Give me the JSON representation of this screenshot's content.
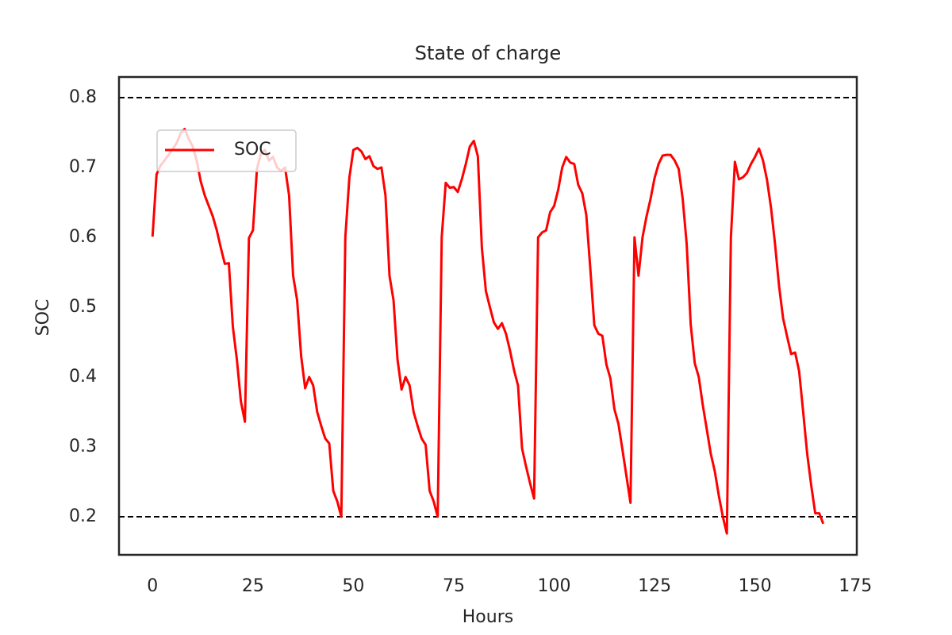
{
  "chart_data": {
    "type": "line",
    "title": "State of charge",
    "x_label": "Hours",
    "y_label": "SOC",
    "x": [
      0,
      1,
      2,
      3,
      4,
      5,
      6,
      7,
      8,
      9,
      10,
      11,
      12,
      13,
      14,
      15,
      16,
      17,
      18,
      19,
      20,
      21,
      22,
      23,
      24,
      25,
      26,
      27,
      28,
      29,
      30,
      31,
      32,
      33,
      34,
      35,
      36,
      37,
      38,
      39,
      40,
      41,
      42,
      43,
      44,
      45,
      46,
      47,
      48,
      49,
      50,
      51,
      52,
      53,
      54,
      55,
      56,
      57,
      58,
      59,
      60,
      61,
      62,
      63,
      64,
      65,
      66,
      67,
      68,
      69,
      70,
      71,
      72,
      73,
      74,
      75,
      76,
      77,
      78,
      79,
      80,
      81,
      82,
      83,
      84,
      85,
      86,
      87,
      88,
      89,
      90,
      91,
      92,
      93,
      94,
      95,
      96,
      97,
      98,
      99,
      100,
      101,
      102,
      103,
      104,
      105,
      106,
      107,
      108,
      109,
      110,
      111,
      112,
      113,
      114,
      115,
      116,
      117,
      118,
      119,
      120,
      121,
      122,
      123,
      124,
      125,
      126,
      127,
      128,
      129,
      130,
      131,
      132,
      133,
      134,
      135,
      136,
      137,
      138,
      139,
      140,
      141,
      142,
      143,
      144,
      145,
      146,
      147,
      148,
      149,
      150,
      151,
      152,
      153,
      154,
      155,
      156,
      157,
      158,
      159,
      160,
      161,
      162,
      163,
      164,
      165,
      166,
      167
    ],
    "series": [
      {
        "name": "SOC",
        "color": "#ff0000",
        "values": [
          0.601,
          0.69,
          0.703,
          0.71,
          0.718,
          0.726,
          0.735,
          0.749,
          0.755,
          0.741,
          0.73,
          0.71,
          0.68,
          0.66,
          0.645,
          0.63,
          0.61,
          0.585,
          0.562,
          0.563,
          0.472,
          0.425,
          0.365,
          0.336,
          0.599,
          0.61,
          0.698,
          0.72,
          0.725,
          0.71,
          0.715,
          0.7,
          0.695,
          0.7,
          0.66,
          0.545,
          0.51,
          0.43,
          0.384,
          0.4,
          0.388,
          0.35,
          0.33,
          0.312,
          0.305,
          0.237,
          0.222,
          0.2,
          0.6,
          0.685,
          0.725,
          0.728,
          0.723,
          0.712,
          0.716,
          0.702,
          0.698,
          0.7,
          0.66,
          0.545,
          0.51,
          0.425,
          0.382,
          0.4,
          0.388,
          0.35,
          0.33,
          0.312,
          0.303,
          0.237,
          0.222,
          0.2,
          0.6,
          0.678,
          0.671,
          0.672,
          0.665,
          0.683,
          0.705,
          0.73,
          0.738,
          0.716,
          0.585,
          0.523,
          0.5,
          0.478,
          0.469,
          0.477,
          0.462,
          0.438,
          0.41,
          0.388,
          0.298,
          0.272,
          0.248,
          0.226,
          0.6,
          0.607,
          0.61,
          0.636,
          0.645,
          0.668,
          0.7,
          0.715,
          0.707,
          0.705,
          0.675,
          0.663,
          0.632,
          0.555,
          0.474,
          0.462,
          0.459,
          0.418,
          0.398,
          0.354,
          0.333,
          0.296,
          0.258,
          0.22,
          0.6,
          0.545,
          0.6,
          0.63,
          0.655,
          0.685,
          0.705,
          0.717,
          0.718,
          0.718,
          0.71,
          0.698,
          0.655,
          0.59,
          0.475,
          0.42,
          0.4,
          0.36,
          0.325,
          0.29,
          0.265,
          0.23,
          0.2,
          0.176,
          0.6,
          0.708,
          0.683,
          0.686,
          0.692,
          0.705,
          0.715,
          0.727,
          0.71,
          0.682,
          0.642,
          0.59,
          0.53,
          0.484,
          0.458,
          0.433,
          0.435,
          0.408,
          0.35,
          0.29,
          0.245,
          0.205,
          0.205,
          0.19
        ]
      }
    ],
    "xlim": [
      -8.35,
      175.35
    ],
    "ylim": [
      0.1455,
      0.8295
    ],
    "xticks": [
      0,
      25,
      50,
      75,
      100,
      125,
      150,
      175
    ],
    "yticks": [
      0.2,
      0.3,
      0.4,
      0.5,
      0.6,
      0.7,
      0.8
    ],
    "hlines": [
      0.2,
      0.8
    ],
    "grid": false,
    "legend_loc": "upper left"
  }
}
